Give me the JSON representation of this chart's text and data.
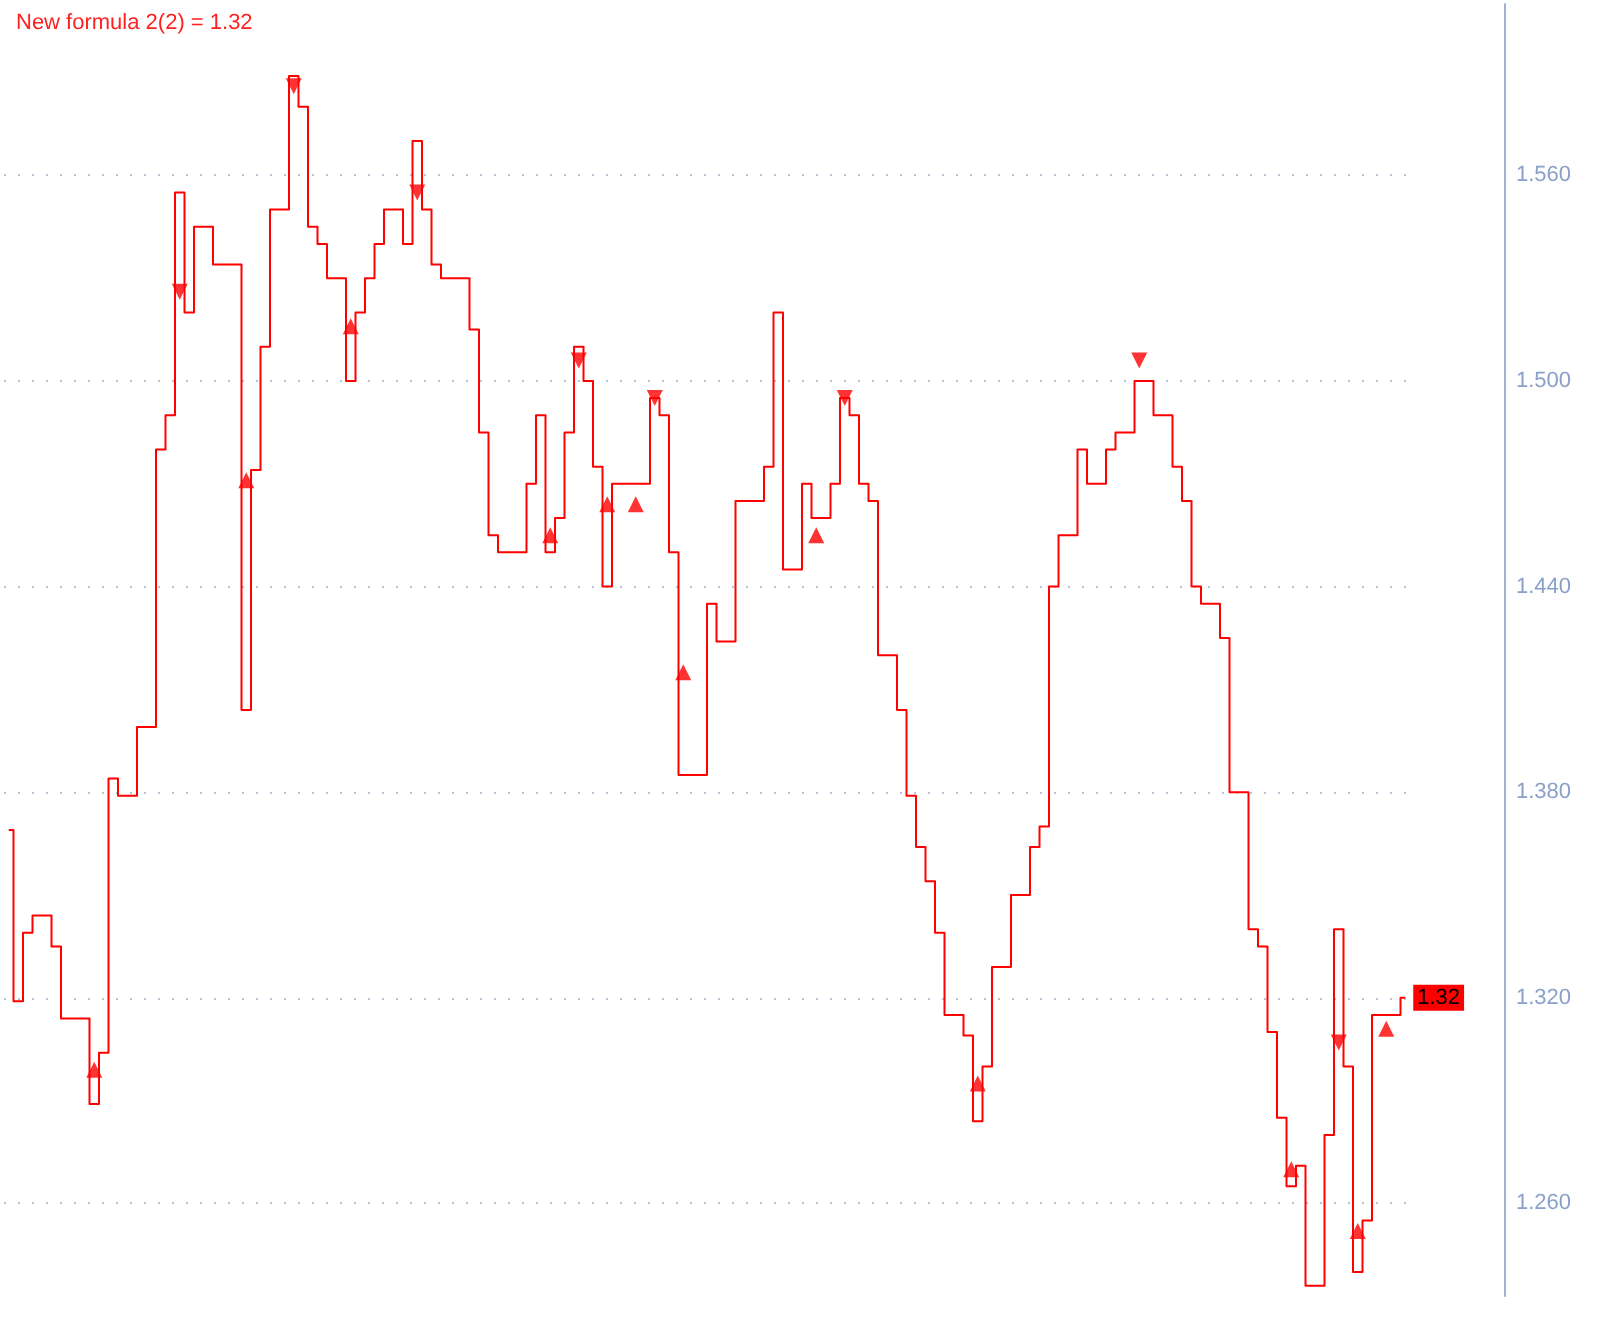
{
  "chart_data": {
    "type": "step",
    "title": "New formula 2(2) = 1.32",
    "categories": [
      null,
      null,
      null,
      null,
      null,
      null,
      null,
      null,
      null,
      null,
      null,
      null,
      null,
      null,
      null,
      null,
      null,
      null,
      null,
      null,
      null,
      null,
      null,
      null,
      null,
      null,
      null,
      null,
      null,
      null,
      null,
      null,
      null,
      null,
      null,
      null,
      null,
      null,
      null,
      null,
      null,
      null,
      null,
      null,
      null,
      null,
      null,
      null,
      null,
      null,
      null,
      null,
      null,
      null,
      null,
      null,
      null,
      null,
      null,
      null,
      null,
      null,
      null,
      null,
      null,
      null,
      null,
      null,
      null,
      null,
      null,
      null,
      null,
      null,
      null,
      null,
      null,
      null,
      null,
      null,
      null,
      null,
      null,
      null,
      null,
      null,
      null,
      null,
      null,
      null,
      null,
      null,
      null,
      null,
      null,
      null,
      null,
      null,
      null,
      null,
      null,
      null,
      null,
      null,
      null,
      null,
      null,
      null,
      null,
      null,
      null,
      null,
      null,
      null,
      null,
      null,
      null,
      null,
      null,
      null,
      null,
      null,
      null,
      null,
      null,
      null,
      null,
      null,
      null,
      null,
      null,
      null,
      null,
      null,
      null,
      null,
      null,
      null,
      null,
      null,
      null,
      null,
      null,
      null,
      null,
      null,
      null,
      null
    ],
    "series": [
      {
        "type": "step",
        "color": "#ff0000",
        "values": [
          1.369,
          1.319,
          1.339,
          1.344,
          1.344,
          1.335,
          1.314,
          1.314,
          1.314,
          1.289,
          1.304,
          1.384,
          1.379,
          1.379,
          1.399,
          1.399,
          1.48,
          1.49,
          1.555,
          1.52,
          1.545,
          1.545,
          1.534,
          1.534,
          1.534,
          1.404,
          1.474,
          1.51,
          1.55,
          1.55,
          1.589,
          1.58,
          1.545,
          1.54,
          1.53,
          1.53,
          1.5,
          1.52,
          1.53,
          1.54,
          1.55,
          1.55,
          1.54,
          1.57,
          1.55,
          1.534,
          1.53,
          1.53,
          1.53,
          1.515,
          1.485,
          1.455,
          1.45,
          1.45,
          1.45,
          1.47,
          1.49,
          1.45,
          1.46,
          1.485,
          1.51,
          1.5,
          1.475,
          1.44,
          1.47,
          1.47,
          1.47,
          1.47,
          1.495,
          1.49,
          1.45,
          1.385,
          1.385,
          1.385,
          1.435,
          1.424,
          1.424,
          1.465,
          1.465,
          1.465,
          1.475,
          1.52,
          1.445,
          1.445,
          1.47,
          1.46,
          1.46,
          1.47,
          1.495,
          1.49,
          1.47,
          1.465,
          1.42,
          1.42,
          1.404,
          1.379,
          1.364,
          1.354,
          1.339,
          1.315,
          1.315,
          1.309,
          1.284,
          1.3,
          1.329,
          1.329,
          1.35,
          1.35,
          1.364,
          1.37,
          1.44,
          1.455,
          1.455,
          1.48,
          1.47,
          1.47,
          1.48,
          1.485,
          1.485,
          1.5,
          1.5,
          1.49,
          1.49,
          1.475,
          1.465,
          1.44,
          1.435,
          1.435,
          1.425,
          1.38,
          1.38,
          1.34,
          1.335,
          1.31,
          1.285,
          1.265,
          1.271,
          1.236,
          1.236,
          1.28,
          1.34,
          1.3,
          1.24,
          1.255,
          1.315,
          1.315,
          1.315,
          1.32
        ],
        "value_labels": [
          null,
          null,
          null,
          null,
          null,
          null,
          null,
          null,
          null,
          null,
          null,
          null,
          null,
          null,
          null,
          null,
          null,
          null,
          null,
          null,
          null,
          null,
          null,
          null,
          null,
          null,
          null,
          null,
          null,
          null,
          null,
          null,
          null,
          null,
          null,
          null,
          null,
          null,
          null,
          null,
          null,
          null,
          null,
          null,
          null,
          null,
          null,
          null,
          null,
          null,
          null,
          null,
          null,
          null,
          null,
          null,
          null,
          null,
          null,
          null,
          null,
          null,
          null,
          null,
          null,
          null,
          null,
          null,
          null,
          null,
          null,
          null,
          null,
          null,
          null,
          null,
          null,
          null,
          null,
          null,
          null,
          null,
          null,
          null,
          null,
          null,
          null,
          null,
          null,
          null,
          null,
          null,
          null,
          null,
          null,
          null,
          null,
          null,
          null,
          null,
          null,
          null,
          null,
          null,
          null,
          null,
          null,
          null,
          null,
          null,
          null,
          null,
          null,
          null,
          null,
          null,
          null,
          null,
          null,
          null,
          null,
          null,
          null,
          null,
          null,
          null,
          null,
          null,
          null,
          null,
          null,
          null,
          null,
          null,
          null,
          null,
          null,
          null,
          null,
          null,
          null,
          null,
          null,
          null,
          null,
          null,
          null,
          "1.32"
        ]
      },
      {
        "type": "scatter",
        "color": "#ff0000",
        "marker": "triangle",
        "values": [
          null,
          null,
          null,
          null,
          null,
          null,
          null,
          null,
          null,
          1.299,
          null,
          null,
          null,
          null,
          null,
          null,
          null,
          null,
          null,
          null,
          null,
          null,
          null,
          null,
          null,
          1.471,
          null,
          null,
          null,
          null,
          null,
          null,
          null,
          null,
          null,
          null,
          1.516,
          null,
          null,
          null,
          null,
          null,
          null,
          null,
          null,
          null,
          null,
          null,
          null,
          null,
          null,
          null,
          null,
          null,
          null,
          null,
          null,
          1.455,
          null,
          null,
          null,
          null,
          null,
          1.464,
          null,
          null,
          1.464,
          null,
          null,
          null,
          null,
          1.415,
          null,
          null,
          null,
          null,
          null,
          null,
          null,
          null,
          null,
          null,
          null,
          null,
          null,
          1.455,
          null,
          null,
          null,
          null,
          null,
          null,
          null,
          null,
          null,
          null,
          null,
          null,
          null,
          null,
          null,
          null,
          1.295,
          null,
          null,
          null,
          null,
          null,
          null,
          null,
          null,
          null,
          null,
          null,
          null,
          null,
          null,
          null,
          null,
          null,
          null,
          null,
          null,
          null,
          null,
          null,
          null,
          null,
          null,
          null,
          null,
          null,
          null,
          null,
          null,
          1.27,
          null,
          null,
          null,
          null,
          null,
          null,
          1.252,
          null,
          null,
          1.311,
          null,
          null
        ]
      },
      {
        "type": "scatter",
        "color": "#ff0000",
        "marker": "triangle",
        "values": [
          null,
          null,
          null,
          null,
          null,
          null,
          null,
          null,
          null,
          null,
          null,
          null,
          null,
          null,
          null,
          null,
          null,
          null,
          1.526,
          null,
          null,
          null,
          null,
          null,
          null,
          null,
          null,
          null,
          null,
          null,
          1.586,
          null,
          null,
          null,
          null,
          null,
          null,
          null,
          null,
          null,
          null,
          null,
          null,
          1.555,
          null,
          null,
          null,
          null,
          null,
          null,
          null,
          null,
          null,
          null,
          null,
          null,
          null,
          null,
          null,
          null,
          1.506,
          null,
          null,
          null,
          null,
          null,
          null,
          null,
          1.495,
          null,
          null,
          null,
          null,
          null,
          null,
          null,
          null,
          null,
          null,
          null,
          null,
          null,
          null,
          null,
          null,
          null,
          null,
          null,
          1.495,
          null,
          null,
          null,
          null,
          null,
          null,
          null,
          null,
          null,
          null,
          null,
          null,
          null,
          null,
          null,
          null,
          null,
          null,
          null,
          null,
          null,
          null,
          null,
          null,
          null,
          null,
          null,
          null,
          null,
          null,
          1.506,
          null,
          null,
          null,
          null,
          null,
          null,
          null,
          null,
          null,
          null,
          null,
          null,
          null,
          null,
          null,
          null,
          null,
          null,
          null,
          null,
          1.307,
          null,
          null,
          null,
          null,
          null,
          null,
          null
        ]
      }
    ],
    "ylim": [
      1.233,
      1.61
    ],
    "yticks": [
      {
        "value": 1.26,
        "label": "1.260"
      },
      {
        "value": 1.32,
        "label": "1.320"
      },
      {
        "value": 1.38,
        "label": "1.380"
      },
      {
        "value": 1.44,
        "label": "1.440"
      },
      {
        "value": 1.5,
        "label": "1.500"
      },
      {
        "value": 1.56,
        "label": "1.560"
      }
    ],
    "grid": "y",
    "tick_labels": "y"
  }
}
